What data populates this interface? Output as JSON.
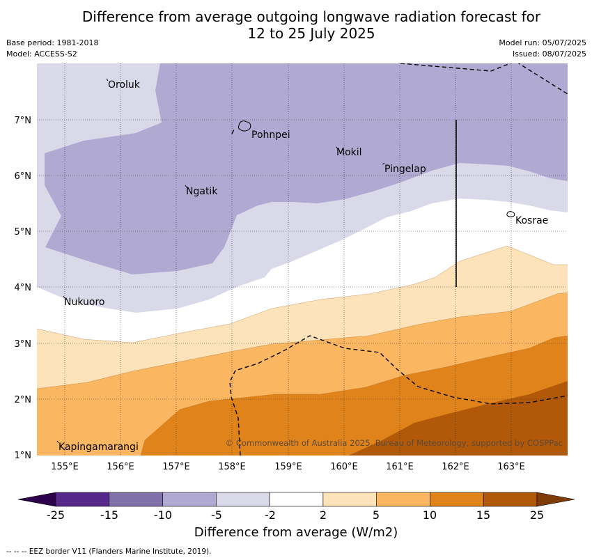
{
  "title_line1": "Difference from average outgoing longwave radiation forecast for",
  "title_line2": "12 to 25 July 2025",
  "meta_left": [
    "Base period: 1981-2018",
    "Model: ACCESS-S2"
  ],
  "meta_right": [
    "Model run: 05/07/2025",
    "Issued: 08/07/2025"
  ],
  "map": {
    "lon_range": [
      154.5,
      164.0
    ],
    "lat_range": [
      1.0,
      8.0
    ],
    "lon_ticks": [
      "155°E",
      "156°E",
      "157°E",
      "158°E",
      "159°E",
      "160°E",
      "161°E",
      "162°E",
      "163°E"
    ],
    "lat_ticks": [
      "7°N",
      "6°N",
      "5°N",
      "4°N",
      "3°N",
      "2°N",
      "1°N"
    ],
    "places": [
      "Oroluk",
      "Pohnpei",
      "Mokil",
      "Pingelap",
      "Ngatik",
      "Kosrae",
      "Nukuoro",
      "Kapingamarangi"
    ],
    "credit": "© Commonwealth of Australia 2025, Bureau of Meteorology, supported by COSPPac"
  },
  "colorbar": {
    "ticks": [
      "-25",
      "-15",
      "-10",
      "-5",
      "-2",
      "2",
      "5",
      "10",
      "15",
      "25"
    ],
    "colors": [
      "#55288a",
      "#8071ab",
      "#b0a9d1",
      "#d9d9ea",
      "#ffffff",
      "#fde2ba",
      "#fab660",
      "#e0831a",
      "#b25909"
    ],
    "under_color": "#2d004b",
    "over_color": "#7f3b08",
    "label": "Difference from average (W/m2)"
  },
  "footer": "--  --  -- EEZ border V11 (Flanders Marine Institute, 2019)."
}
